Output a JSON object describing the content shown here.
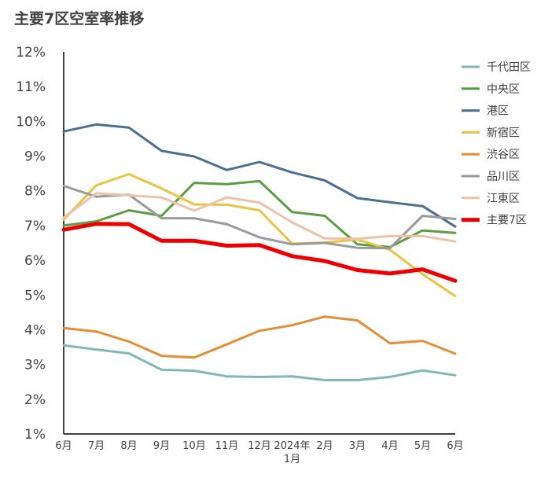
{
  "chart_data": {
    "type": "line",
    "title": "主要7区空室率推移",
    "xlabel": "",
    "ylabel": "",
    "ylim": [
      1,
      12
    ],
    "yticks": [
      "1%",
      "2%",
      "3%",
      "4%",
      "5%",
      "6%",
      "7%",
      "8%",
      "9%",
      "10%",
      "11%",
      "12%"
    ],
    "categories": [
      "6月",
      "7月",
      "8月",
      "9月",
      "10月",
      "11月",
      "12月",
      "2024年1月",
      "2月",
      "3月",
      "4月",
      "5月",
      "6月"
    ],
    "x_label_lines": [
      [
        "6月"
      ],
      [
        "7月"
      ],
      [
        "8月"
      ],
      [
        "9月"
      ],
      [
        "10月"
      ],
      [
        "11月"
      ],
      [
        "12月"
      ],
      [
        "2024年",
        "1月"
      ],
      [
        "2月"
      ],
      [
        "3月"
      ],
      [
        "4月"
      ],
      [
        "5月"
      ],
      [
        "6月"
      ]
    ],
    "grid": false,
    "legend_position": "right",
    "series": [
      {
        "name": "千代田区",
        "color": "#7fb9b1",
        "width": 3,
        "values": [
          3.55,
          3.43,
          3.32,
          2.85,
          2.82,
          2.66,
          2.64,
          2.66,
          2.55,
          2.55,
          2.64,
          2.83,
          2.69
        ]
      },
      {
        "name": "中央区",
        "color": "#5a9e44",
        "width": 3,
        "values": [
          7.0,
          7.12,
          7.44,
          7.28,
          8.23,
          8.19,
          8.28,
          7.39,
          7.28,
          6.46,
          6.38,
          6.86,
          6.79
        ]
      },
      {
        "name": "港区",
        "color": "#4a6f96",
        "width": 3,
        "values": [
          9.71,
          9.91,
          9.82,
          9.15,
          8.99,
          8.6,
          8.83,
          8.53,
          8.3,
          7.79,
          7.67,
          7.56,
          6.97
        ]
      },
      {
        "name": "新宿区",
        "color": "#e8c440",
        "width": 3,
        "values": [
          7.17,
          8.16,
          8.48,
          8.07,
          7.61,
          7.6,
          7.44,
          6.48,
          6.51,
          6.6,
          6.3,
          5.6,
          4.97
        ]
      },
      {
        "name": "渋谷区",
        "color": "#e38d35",
        "width": 3,
        "values": [
          4.05,
          3.95,
          3.66,
          3.25,
          3.2,
          3.58,
          3.97,
          4.13,
          4.38,
          4.27,
          3.61,
          3.68,
          3.31
        ]
      },
      {
        "name": "品川区",
        "color": "#9a9a9a",
        "width": 3,
        "values": [
          8.14,
          7.83,
          7.89,
          7.21,
          7.21,
          7.04,
          6.66,
          6.46,
          6.5,
          6.36,
          6.35,
          7.28,
          7.19
        ]
      },
      {
        "name": "江東区",
        "color": "#edc2a8",
        "width": 3,
        "values": [
          7.23,
          7.93,
          7.87,
          7.81,
          7.43,
          7.81,
          7.66,
          7.09,
          6.63,
          6.62,
          6.7,
          6.7,
          6.54
        ]
      },
      {
        "name": "主要7区",
        "color": "#ee0000",
        "width": 5,
        "values": [
          6.88,
          7.05,
          7.04,
          6.56,
          6.56,
          6.42,
          6.44,
          6.12,
          5.98,
          5.72,
          5.62,
          5.74,
          5.41
        ]
      }
    ]
  }
}
